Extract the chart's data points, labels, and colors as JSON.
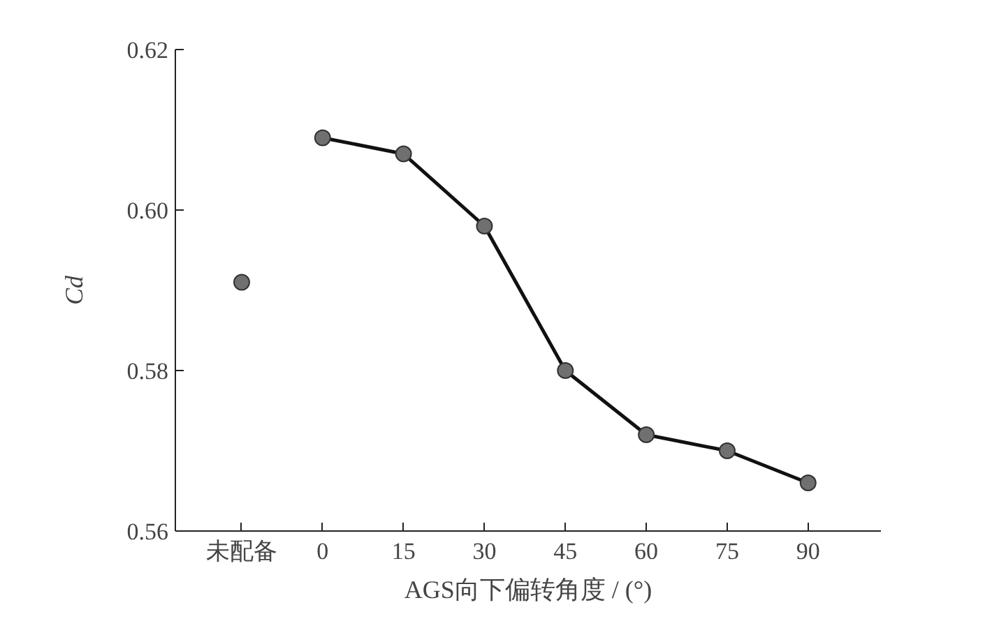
{
  "chart_data": {
    "type": "line",
    "xlabel": "AGS向下偏转角度 / (°)",
    "ylabel": "Cd",
    "categories": [
      "未配备",
      "0",
      "15",
      "30",
      "45",
      "60",
      "75",
      "90"
    ],
    "series": [
      {
        "type": "scatter",
        "color": "#707070",
        "values": [
          0.591,
          null,
          null,
          null,
          null,
          null,
          null,
          null
        ]
      },
      {
        "type": "line",
        "color": "#707070",
        "values": [
          null,
          0.609,
          0.607,
          0.598,
          0.58,
          0.572,
          0.57,
          0.566
        ]
      }
    ],
    "ylim": [
      0.56,
      0.62
    ],
    "yticks": [
      {
        "value": 0.56,
        "label": "0.56"
      },
      {
        "value": 0.58,
        "label": "0.58"
      },
      {
        "value": 0.6,
        "label": "0.60"
      },
      {
        "value": 0.62,
        "label": "0.62"
      }
    ],
    "grid": false,
    "marker": "circle",
    "line_style": "solid"
  }
}
